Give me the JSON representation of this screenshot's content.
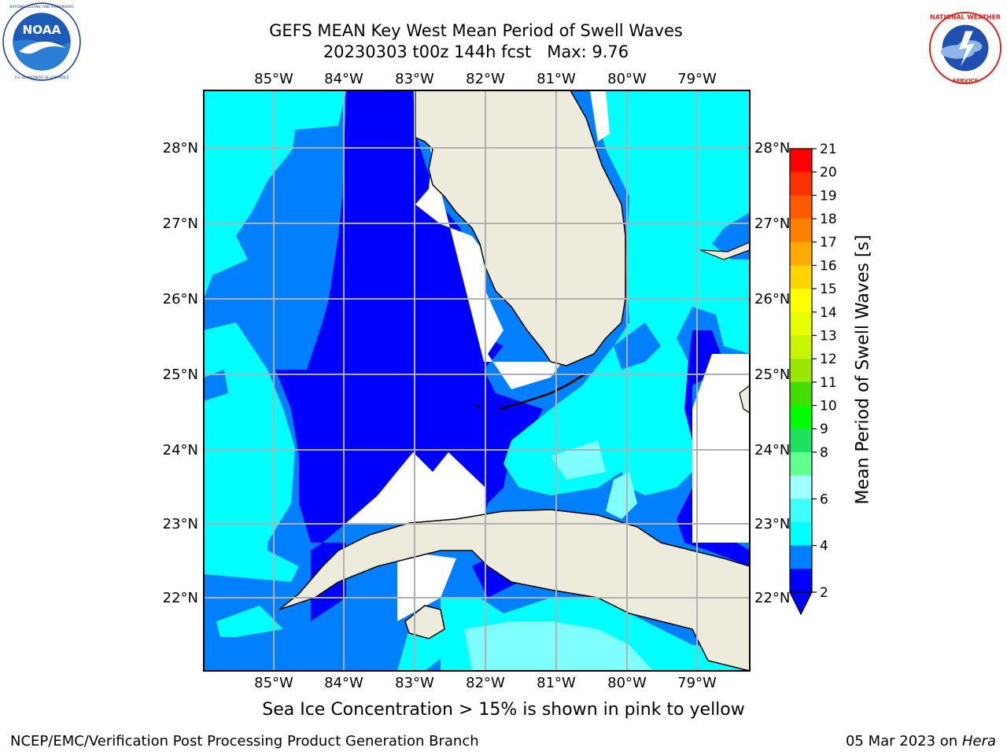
{
  "header": {
    "title_line1": "GEFS MEAN Key West Mean Period of Swell Waves",
    "title_line2": "20230303 t00z 144h fcst   Max: 9.76"
  },
  "logos": {
    "left": {
      "icon": "noaa-logo",
      "text": "NOAA",
      "ring_text": "NATIONAL OCEANIC AND ATMOSPHERIC ADMINISTRATION · U.S. DEPARTMENT OF COMMERCE"
    },
    "right": {
      "icon": "nws-logo",
      "ring_text": "NATIONAL WEATHER SERVICE"
    }
  },
  "map": {
    "lon_labels": [
      "85°W",
      "84°W",
      "83°W",
      "82°W",
      "81°W",
      "80°W",
      "79°W"
    ],
    "lat_labels": [
      "28°N",
      "27°N",
      "26°N",
      "25°N",
      "24°N",
      "23°N",
      "22°N"
    ],
    "colors": {
      "land": "#ecebdc",
      "grid": "#b0b0b0",
      "c2_4": "#0000ff",
      "c4_6": "#007fff",
      "c6_8": "#00ffff",
      "c8_9": "#7fffff"
    }
  },
  "colorbar": {
    "label": "Mean Period of Swell Waves [s]",
    "ticks": [
      "21",
      "20",
      "19",
      "18",
      "17",
      "16",
      "15",
      "14",
      "13",
      "12",
      "11",
      "10",
      "9",
      "8",
      "6",
      "4",
      "2"
    ],
    "colors": [
      "#ff0000",
      "#ff3000",
      "#ff5a00",
      "#ff8000",
      "#ffaa00",
      "#ffd400",
      "#ffff00",
      "#e8ff00",
      "#c8f500",
      "#99e600",
      "#44dd00",
      "#00ff00",
      "#20e060",
      "#60ff90",
      "#a0ffff",
      "#40ffff",
      "#00ffff",
      "#007fff",
      "#0000ff"
    ]
  },
  "note": "Sea Ice Concentration > 15% is shown in pink to yellow",
  "footer": {
    "left": "NCEP/EMC/Verification Post Processing Product Generation Branch",
    "date": "05 Mar 2023 on ",
    "host": "Hera"
  }
}
